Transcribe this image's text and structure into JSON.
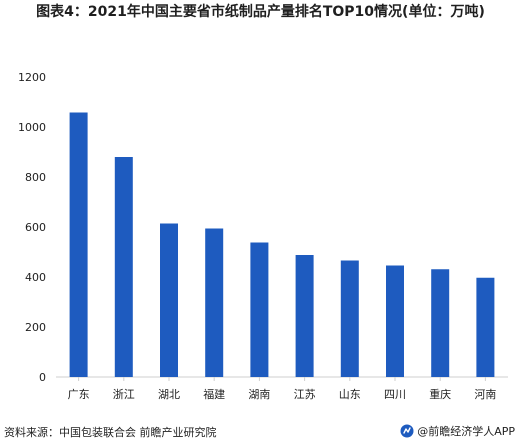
{
  "title": "图表4：2021年中国主要省市纸制品产量排名TOP10情况(单位：万吨)",
  "footer": {
    "source": "资料来源：中国包装联合会 前瞻产业研究院",
    "brand": "@前瞻经济学人APP"
  },
  "colors": {
    "bar": "#1e5bbf",
    "axis": "#cfcfcf",
    "text": "#1f1f1f",
    "brand_icon": "#1e5bbf"
  },
  "icons": {
    "brand": "qianzhan-logo-icon"
  },
  "chart_data": {
    "type": "bar",
    "title": "图表4：2021年中国主要省市纸制品产量排名TOP10情况(单位：万吨)",
    "categories": [
      "广东",
      "浙江",
      "湖北",
      "福建",
      "湖南",
      "江苏",
      "山东",
      "四川",
      "重庆",
      "河南"
    ],
    "series": [
      {
        "values": [
          1058,
          880,
          614,
          594,
          538,
          488,
          466,
          446,
          431,
          397
        ]
      }
    ],
    "ylim": [
      0,
      1200
    ],
    "yticks": [
      0,
      200,
      400,
      600,
      800,
      1000,
      1200
    ],
    "xlabel": "",
    "ylabel": "",
    "grid": false,
    "legend": "none"
  }
}
